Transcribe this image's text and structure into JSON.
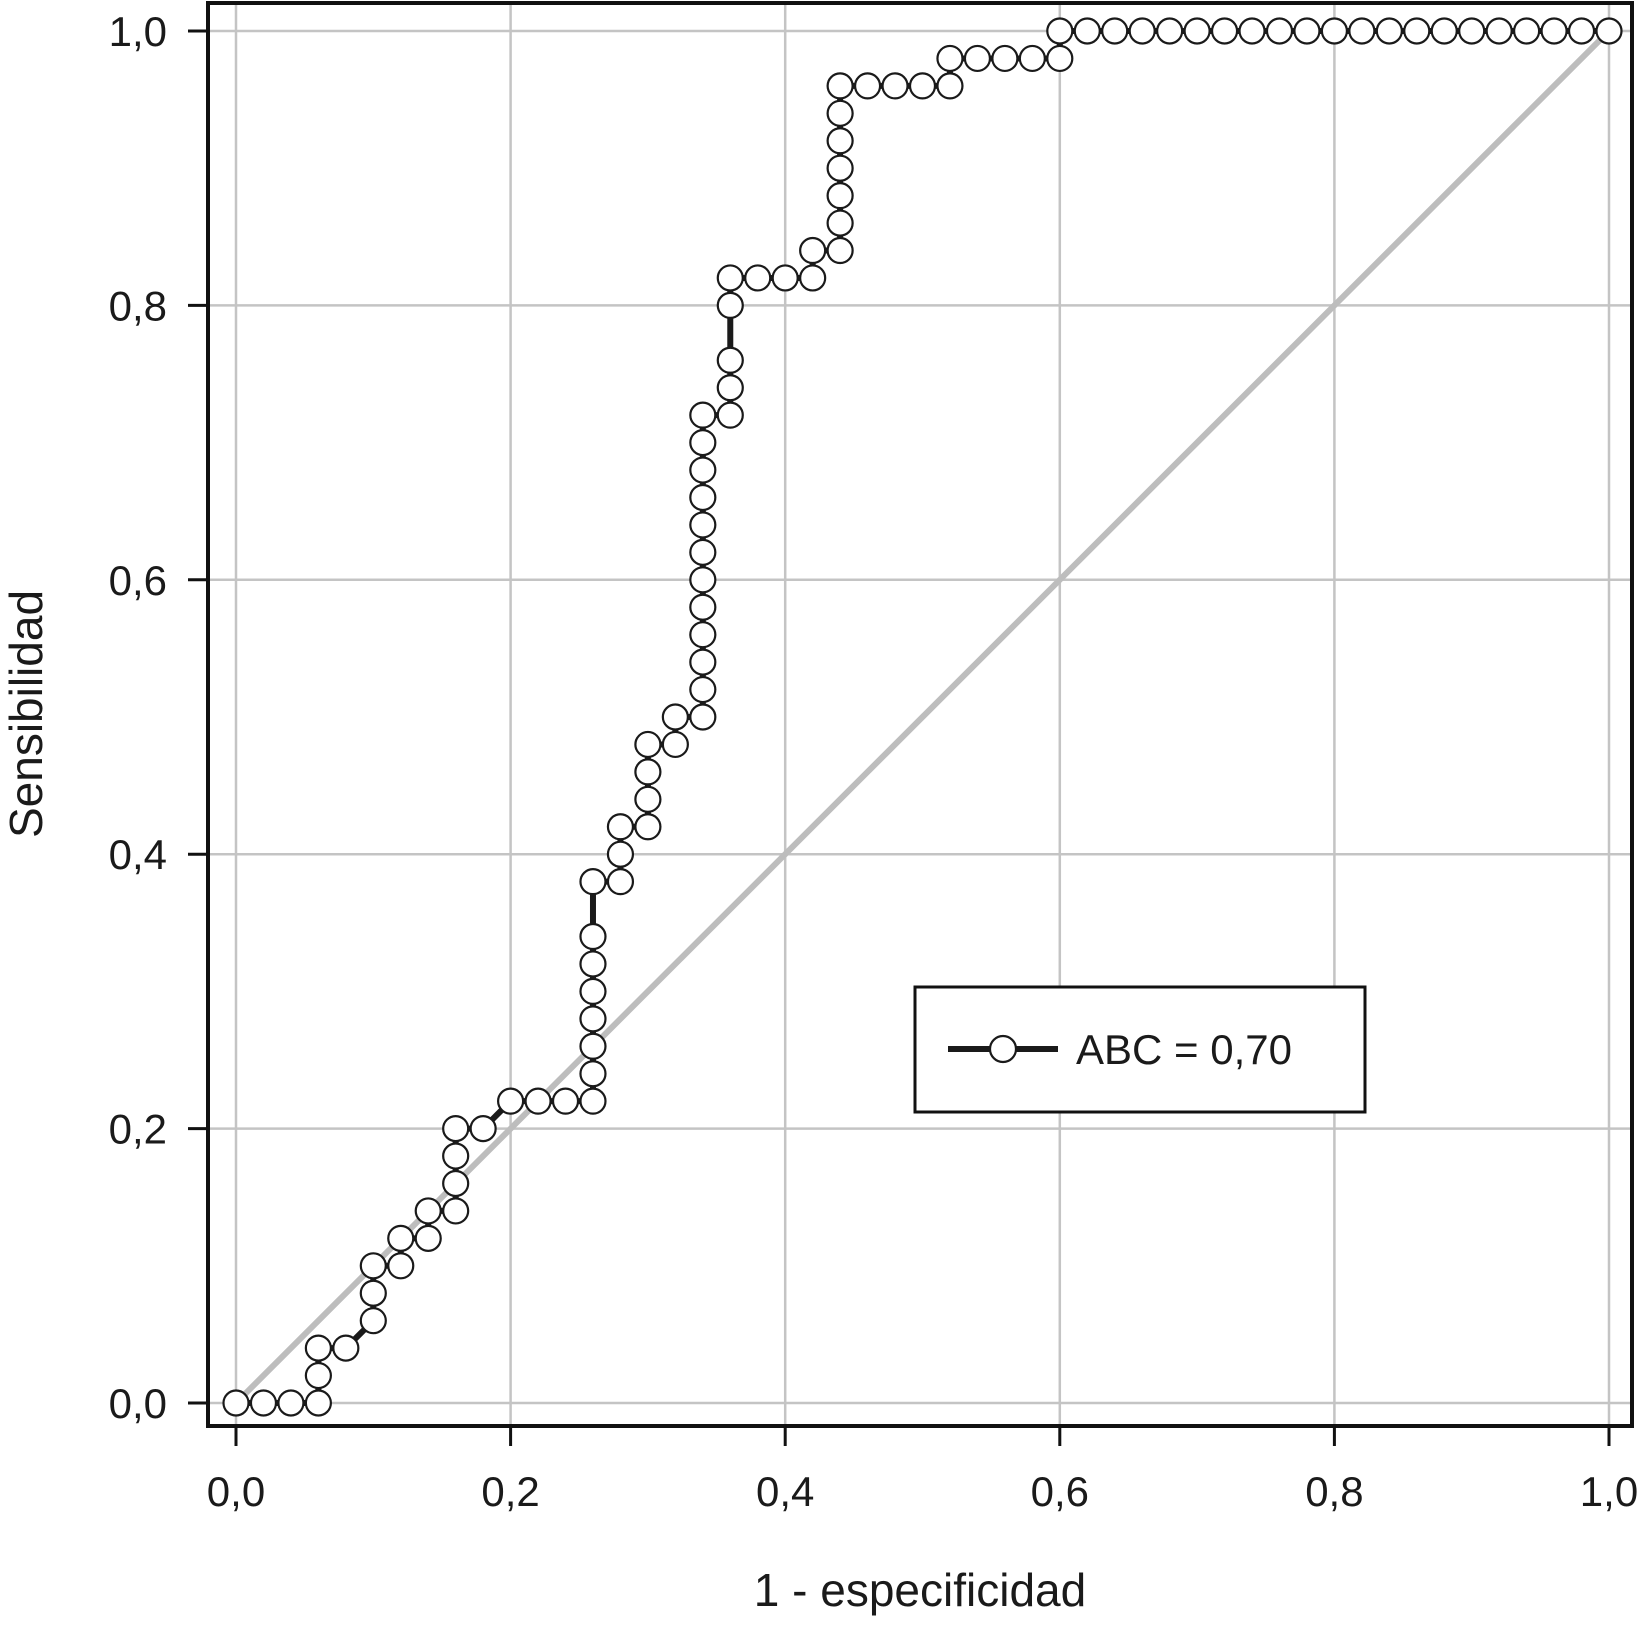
{
  "chart_data": {
    "type": "line",
    "xlabel": "1 - especificidad",
    "ylabel": "Sensibilidad",
    "xlim": [
      0,
      1
    ],
    "ylim": [
      0,
      1
    ],
    "grid": true,
    "legend_position": "center-right",
    "x_ticks": [
      "0,0",
      "0,2",
      "0,4",
      "0,6",
      "0,8",
      "1,0"
    ],
    "y_ticks": [
      "0,0",
      "0,2",
      "0,4",
      "0,6",
      "0,8",
      "1,0"
    ],
    "colors": {
      "roc": "#1a1a1a",
      "reference": "#bdbdbd",
      "grid": "#c4c4c4",
      "marker_fill": "#ffffff"
    },
    "reference_line": {
      "x": [
        0,
        1
      ],
      "y": [
        0,
        1
      ]
    },
    "series": [
      {
        "name": "ABC = 0,70",
        "marker": "open-circle",
        "x": [
          0,
          0.02,
          0.04,
          0.06,
          0.06,
          0.06,
          0.08,
          0.1,
          0.1,
          0.1,
          0.12,
          0.12,
          0.14,
          0.14,
          0.16,
          0.16,
          0.16,
          0.16,
          0.18,
          0.2,
          0.22,
          0.24,
          0.26,
          0.26,
          0.26,
          0.26,
          0.26,
          0.26,
          0.26,
          0.26,
          0.28,
          0.28,
          0.28,
          0.3,
          0.3,
          0.3,
          0.3,
          0.32,
          0.32,
          0.34,
          0.34,
          0.34,
          0.34,
          0.34,
          0.34,
          0.34,
          0.34,
          0.34,
          0.34,
          0.34,
          0.34,
          0.36,
          0.36,
          0.36,
          0.36,
          0.36,
          0.38,
          0.4,
          0.42,
          0.42,
          0.44,
          0.44,
          0.44,
          0.44,
          0.44,
          0.44,
          0.44,
          0.46,
          0.48,
          0.5,
          0.52,
          0.52,
          0.54,
          0.56,
          0.58,
          0.6,
          0.6,
          0.62,
          0.64,
          0.66,
          0.68,
          0.7,
          0.72,
          0.74,
          0.76,
          0.78,
          0.8,
          0.82,
          0.84,
          0.86,
          0.88,
          0.9,
          0.92,
          0.94,
          0.96,
          0.98,
          1.0
        ],
        "y": [
          0,
          0,
          0,
          0,
          0.02,
          0.04,
          0.04,
          0.06,
          0.08,
          0.1,
          0.1,
          0.12,
          0.12,
          0.14,
          0.14,
          0.16,
          0.18,
          0.2,
          0.2,
          0.22,
          0.22,
          0.22,
          0.22,
          0.24,
          0.26,
          0.28,
          0.3,
          0.32,
          0.34,
          0.38,
          0.38,
          0.4,
          0.42,
          0.42,
          0.44,
          0.46,
          0.48,
          0.48,
          0.5,
          0.5,
          0.52,
          0.54,
          0.56,
          0.58,
          0.6,
          0.62,
          0.64,
          0.66,
          0.68,
          0.7,
          0.72,
          0.72,
          0.74,
          0.76,
          0.8,
          0.82,
          0.82,
          0.82,
          0.82,
          0.84,
          0.84,
          0.86,
          0.88,
          0.9,
          0.92,
          0.94,
          0.96,
          0.96,
          0.96,
          0.96,
          0.96,
          0.98,
          0.98,
          0.98,
          0.98,
          0.98,
          1.0,
          1.0,
          1.0,
          1.0,
          1.0,
          1.0,
          1.0,
          1.0,
          1.0,
          1.0,
          1.0,
          1.0,
          1.0,
          1.0,
          1.0,
          1.0,
          1.0,
          1.0,
          1.0,
          1.0,
          1.0
        ]
      }
    ]
  }
}
